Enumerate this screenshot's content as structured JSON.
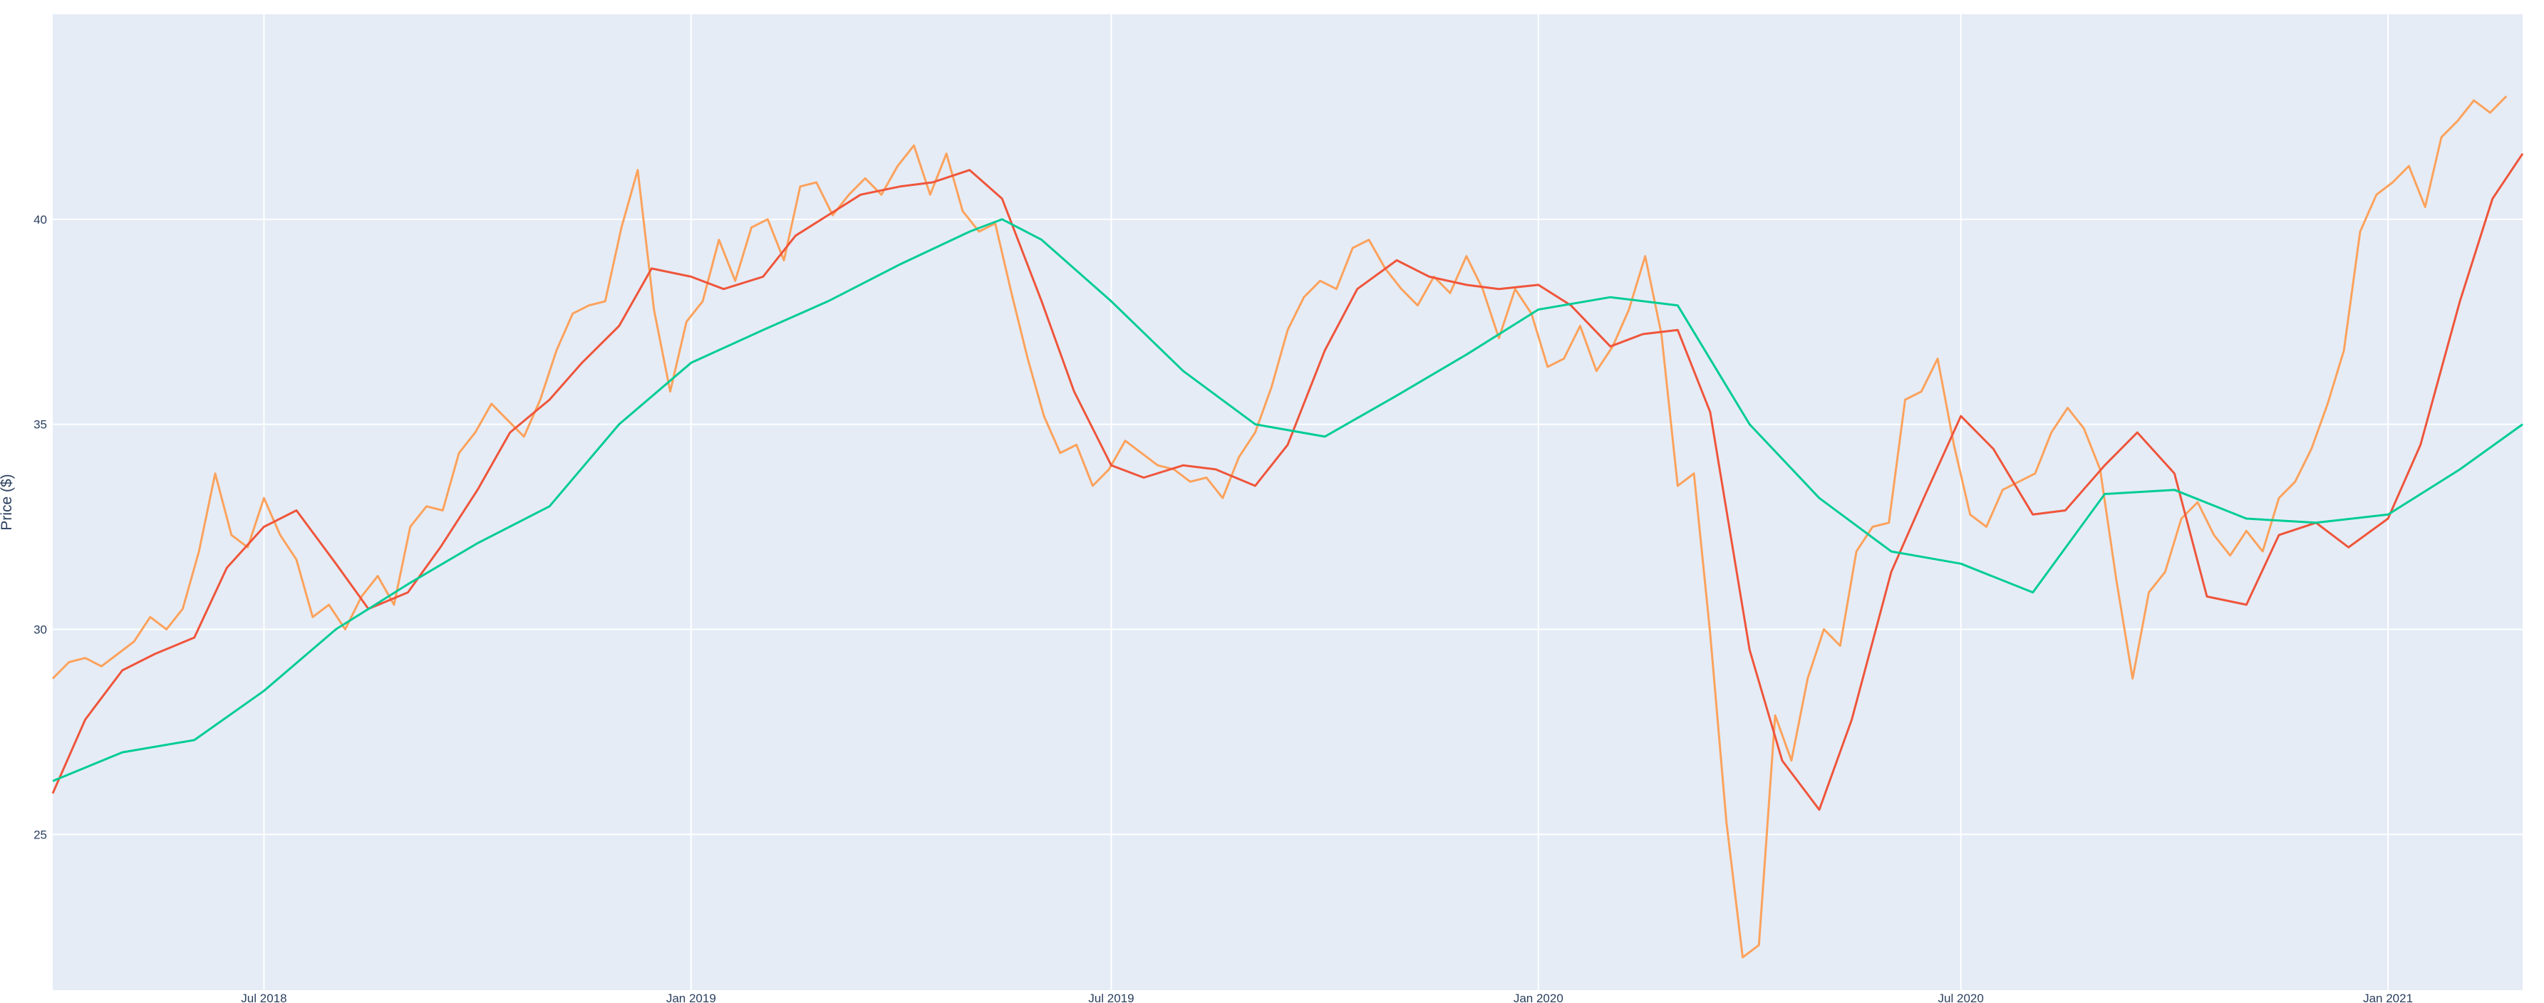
{
  "chart_data": {
    "type": "line",
    "title": "",
    "xlabel": "",
    "ylabel": "Price ($)",
    "xlim": [
      "2018-04-01",
      "2021-02-28"
    ],
    "ylim": [
      21.2,
      45.0
    ],
    "grid": true,
    "legend": "none",
    "colors": {
      "plot_bg": "#e5ecf6",
      "grid": "#ffffff",
      "tick_text": "#2a3f5f"
    },
    "x_ticks": [
      {
        "date": "2018-07-01",
        "label": "Jul 2018"
      },
      {
        "date": "2019-01-01",
        "label": "Jan 2019"
      },
      {
        "date": "2019-07-01",
        "label": "Jul 2019"
      },
      {
        "date": "2020-01-01",
        "label": "Jan 2020"
      },
      {
        "date": "2020-07-01",
        "label": "Jul 2020"
      },
      {
        "date": "2021-01-01",
        "label": "Jan 2021"
      }
    ],
    "y_ticks": [
      {
        "value": 25,
        "label": "25"
      },
      {
        "value": 30,
        "label": "30"
      },
      {
        "value": 35,
        "label": "35"
      },
      {
        "value": 40,
        "label": "40"
      }
    ],
    "series": [
      {
        "key": "price",
        "color": "#fca25c",
        "points": [
          [
            "2018-04-01",
            28.8
          ],
          [
            "2018-04-08",
            29.2
          ],
          [
            "2018-04-15",
            29.3
          ],
          [
            "2018-04-22",
            29.1
          ],
          [
            "2018-04-29",
            29.4
          ],
          [
            "2018-05-06",
            29.7
          ],
          [
            "2018-05-13",
            30.3
          ],
          [
            "2018-05-20",
            30.0
          ],
          [
            "2018-05-27",
            30.5
          ],
          [
            "2018-06-03",
            31.9
          ],
          [
            "2018-06-10",
            33.8
          ],
          [
            "2018-06-17",
            32.3
          ],
          [
            "2018-06-24",
            32.0
          ],
          [
            "2018-07-01",
            33.2
          ],
          [
            "2018-07-08",
            32.3
          ],
          [
            "2018-07-15",
            31.7
          ],
          [
            "2018-07-22",
            30.3
          ],
          [
            "2018-07-29",
            30.6
          ],
          [
            "2018-08-05",
            30.0
          ],
          [
            "2018-08-12",
            30.8
          ],
          [
            "2018-08-19",
            31.3
          ],
          [
            "2018-08-26",
            30.6
          ],
          [
            "2018-09-02",
            32.5
          ],
          [
            "2018-09-09",
            33.0
          ],
          [
            "2018-09-16",
            32.9
          ],
          [
            "2018-09-23",
            34.3
          ],
          [
            "2018-09-30",
            34.8
          ],
          [
            "2018-10-07",
            35.5
          ],
          [
            "2018-10-14",
            35.1
          ],
          [
            "2018-10-21",
            34.7
          ],
          [
            "2018-10-28",
            35.6
          ],
          [
            "2018-11-04",
            36.8
          ],
          [
            "2018-11-11",
            37.7
          ],
          [
            "2018-11-18",
            37.9
          ],
          [
            "2018-11-25",
            38.0
          ],
          [
            "2018-12-02",
            39.8
          ],
          [
            "2018-12-09",
            41.2
          ],
          [
            "2018-12-16",
            37.8
          ],
          [
            "2018-12-23",
            35.8
          ],
          [
            "2018-12-30",
            37.5
          ],
          [
            "2019-01-06",
            38.0
          ],
          [
            "2019-01-13",
            39.5
          ],
          [
            "2019-01-20",
            38.5
          ],
          [
            "2019-01-27",
            39.8
          ],
          [
            "2019-02-03",
            40.0
          ],
          [
            "2019-02-10",
            39.0
          ],
          [
            "2019-02-17",
            40.8
          ],
          [
            "2019-02-24",
            40.9
          ],
          [
            "2019-03-03",
            40.1
          ],
          [
            "2019-03-10",
            40.6
          ],
          [
            "2019-03-17",
            41.0
          ],
          [
            "2019-03-24",
            40.6
          ],
          [
            "2019-03-31",
            41.3
          ],
          [
            "2019-04-07",
            41.8
          ],
          [
            "2019-04-14",
            40.6
          ],
          [
            "2019-04-21",
            41.6
          ],
          [
            "2019-04-28",
            40.2
          ],
          [
            "2019-05-05",
            39.7
          ],
          [
            "2019-05-12",
            39.9
          ],
          [
            "2019-05-19",
            38.2
          ],
          [
            "2019-05-26",
            36.6
          ],
          [
            "2019-06-02",
            35.2
          ],
          [
            "2019-06-09",
            34.3
          ],
          [
            "2019-06-16",
            34.5
          ],
          [
            "2019-06-23",
            33.5
          ],
          [
            "2019-06-30",
            33.9
          ],
          [
            "2019-07-07",
            34.6
          ],
          [
            "2019-07-14",
            34.3
          ],
          [
            "2019-07-21",
            34.0
          ],
          [
            "2019-07-28",
            33.9
          ],
          [
            "2019-08-04",
            33.6
          ],
          [
            "2019-08-11",
            33.7
          ],
          [
            "2019-08-18",
            33.2
          ],
          [
            "2019-08-25",
            34.2
          ],
          [
            "2019-09-01",
            34.8
          ],
          [
            "2019-09-08",
            35.9
          ],
          [
            "2019-09-15",
            37.3
          ],
          [
            "2019-09-22",
            38.1
          ],
          [
            "2019-09-29",
            38.5
          ],
          [
            "2019-10-06",
            38.3
          ],
          [
            "2019-10-13",
            39.3
          ],
          [
            "2019-10-20",
            39.5
          ],
          [
            "2019-10-27",
            38.8
          ],
          [
            "2019-11-03",
            38.3
          ],
          [
            "2019-11-10",
            37.9
          ],
          [
            "2019-11-17",
            38.6
          ],
          [
            "2019-11-24",
            38.2
          ],
          [
            "2019-12-01",
            39.1
          ],
          [
            "2019-12-08",
            38.3
          ],
          [
            "2019-12-15",
            37.1
          ],
          [
            "2019-12-22",
            38.3
          ],
          [
            "2019-12-29",
            37.7
          ],
          [
            "2020-01-05",
            36.4
          ],
          [
            "2020-01-12",
            36.6
          ],
          [
            "2020-01-19",
            37.4
          ],
          [
            "2020-01-26",
            36.3
          ],
          [
            "2020-02-02",
            36.9
          ],
          [
            "2020-02-09",
            37.8
          ],
          [
            "2020-02-16",
            39.1
          ],
          [
            "2020-02-23",
            37.2
          ],
          [
            "2020-03-01",
            33.5
          ],
          [
            "2020-03-08",
            33.8
          ],
          [
            "2020-03-15",
            29.9
          ],
          [
            "2020-03-22",
            25.3
          ],
          [
            "2020-03-29",
            22.0
          ],
          [
            "2020-04-05",
            22.3
          ],
          [
            "2020-04-12",
            27.9
          ],
          [
            "2020-04-19",
            26.8
          ],
          [
            "2020-04-26",
            28.8
          ],
          [
            "2020-05-03",
            30.0
          ],
          [
            "2020-05-10",
            29.6
          ],
          [
            "2020-05-17",
            31.9
          ],
          [
            "2020-05-24",
            32.5
          ],
          [
            "2020-05-31",
            32.6
          ],
          [
            "2020-06-07",
            35.6
          ],
          [
            "2020-06-14",
            35.8
          ],
          [
            "2020-06-21",
            36.6
          ],
          [
            "2020-06-28",
            34.5
          ],
          [
            "2020-07-05",
            32.8
          ],
          [
            "2020-07-12",
            32.5
          ],
          [
            "2020-07-19",
            33.4
          ],
          [
            "2020-07-26",
            33.6
          ],
          [
            "2020-08-02",
            33.8
          ],
          [
            "2020-08-09",
            34.8
          ],
          [
            "2020-08-16",
            35.4
          ],
          [
            "2020-08-23",
            34.9
          ],
          [
            "2020-08-30",
            33.9
          ],
          [
            "2020-09-06",
            31.2
          ],
          [
            "2020-09-13",
            28.8
          ],
          [
            "2020-09-20",
            30.9
          ],
          [
            "2020-09-27",
            31.4
          ],
          [
            "2020-10-04",
            32.7
          ],
          [
            "2020-10-11",
            33.1
          ],
          [
            "2020-10-18",
            32.3
          ],
          [
            "2020-10-25",
            31.8
          ],
          [
            "2020-11-01",
            32.4
          ],
          [
            "2020-11-08",
            31.9
          ],
          [
            "2020-11-15",
            33.2
          ],
          [
            "2020-11-22",
            33.6
          ],
          [
            "2020-11-29",
            34.4
          ],
          [
            "2020-12-06",
            35.5
          ],
          [
            "2020-12-13",
            36.8
          ],
          [
            "2020-12-20",
            39.7
          ],
          [
            "2020-12-27",
            40.6
          ],
          [
            "2021-01-03",
            40.9
          ],
          [
            "2021-01-10",
            41.3
          ],
          [
            "2021-01-17",
            40.3
          ],
          [
            "2021-01-24",
            42.0
          ],
          [
            "2021-01-31",
            42.4
          ],
          [
            "2021-02-07",
            42.9
          ],
          [
            "2021-02-14",
            42.6
          ],
          [
            "2021-02-21",
            43.0
          ]
        ]
      },
      {
        "key": "ma-short",
        "color": "#ef553b",
        "points": [
          [
            "2018-04-01",
            26.0
          ],
          [
            "2018-04-15",
            27.8
          ],
          [
            "2018-05-01",
            29.0
          ],
          [
            "2018-05-15",
            29.4
          ],
          [
            "2018-06-01",
            29.8
          ],
          [
            "2018-06-15",
            31.5
          ],
          [
            "2018-07-01",
            32.5
          ],
          [
            "2018-07-15",
            32.9
          ],
          [
            "2018-08-01",
            31.6
          ],
          [
            "2018-08-15",
            30.5
          ],
          [
            "2018-09-01",
            30.9
          ],
          [
            "2018-09-15",
            32.0
          ],
          [
            "2018-10-01",
            33.4
          ],
          [
            "2018-10-15",
            34.8
          ],
          [
            "2018-11-01",
            35.6
          ],
          [
            "2018-11-15",
            36.5
          ],
          [
            "2018-12-01",
            37.4
          ],
          [
            "2018-12-15",
            38.8
          ],
          [
            "2019-01-01",
            38.6
          ],
          [
            "2019-01-15",
            38.3
          ],
          [
            "2019-02-01",
            38.6
          ],
          [
            "2019-02-15",
            39.6
          ],
          [
            "2019-03-01",
            40.1
          ],
          [
            "2019-03-15",
            40.6
          ],
          [
            "2019-04-01",
            40.8
          ],
          [
            "2019-04-15",
            40.9
          ],
          [
            "2019-05-01",
            41.2
          ],
          [
            "2019-05-15",
            40.5
          ],
          [
            "2019-06-01",
            38.0
          ],
          [
            "2019-06-15",
            35.8
          ],
          [
            "2019-07-01",
            34.0
          ],
          [
            "2019-07-15",
            33.7
          ],
          [
            "2019-08-01",
            34.0
          ],
          [
            "2019-08-15",
            33.9
          ],
          [
            "2019-09-01",
            33.5
          ],
          [
            "2019-09-15",
            34.5
          ],
          [
            "2019-10-01",
            36.8
          ],
          [
            "2019-10-15",
            38.3
          ],
          [
            "2019-11-01",
            39.0
          ],
          [
            "2019-11-15",
            38.6
          ],
          [
            "2019-12-01",
            38.4
          ],
          [
            "2019-12-15",
            38.3
          ],
          [
            "2020-01-01",
            38.4
          ],
          [
            "2020-01-15",
            37.9
          ],
          [
            "2020-02-01",
            36.9
          ],
          [
            "2020-02-15",
            37.2
          ],
          [
            "2020-03-01",
            37.3
          ],
          [
            "2020-03-15",
            35.3
          ],
          [
            "2020-04-01",
            29.5
          ],
          [
            "2020-04-15",
            26.8
          ],
          [
            "2020-05-01",
            25.6
          ],
          [
            "2020-05-15",
            27.8
          ],
          [
            "2020-06-01",
            31.4
          ],
          [
            "2020-06-15",
            33.2
          ],
          [
            "2020-07-01",
            35.2
          ],
          [
            "2020-07-15",
            34.4
          ],
          [
            "2020-08-01",
            32.8
          ],
          [
            "2020-08-15",
            32.9
          ],
          [
            "2020-09-01",
            34.0
          ],
          [
            "2020-09-15",
            34.8
          ],
          [
            "2020-10-01",
            33.8
          ],
          [
            "2020-10-15",
            30.8
          ],
          [
            "2020-11-01",
            30.6
          ],
          [
            "2020-11-15",
            32.3
          ],
          [
            "2020-12-01",
            32.6
          ],
          [
            "2020-12-15",
            32.0
          ],
          [
            "2021-01-01",
            32.7
          ],
          [
            "2021-01-15",
            34.5
          ],
          [
            "2021-02-01",
            38.0
          ],
          [
            "2021-02-15",
            40.5
          ],
          [
            "2021-02-28",
            41.6
          ]
        ]
      },
      {
        "key": "ma-long",
        "color": "#00cc96",
        "points": [
          [
            "2018-04-01",
            26.3
          ],
          [
            "2018-05-01",
            27.0
          ],
          [
            "2018-06-01",
            27.3
          ],
          [
            "2018-07-01",
            28.5
          ],
          [
            "2018-08-01",
            30.0
          ],
          [
            "2018-09-01",
            31.1
          ],
          [
            "2018-10-01",
            32.1
          ],
          [
            "2018-11-01",
            33.0
          ],
          [
            "2018-12-01",
            35.0
          ],
          [
            "2019-01-01",
            36.5
          ],
          [
            "2019-02-01",
            37.3
          ],
          [
            "2019-03-01",
            38.0
          ],
          [
            "2019-04-01",
            38.9
          ],
          [
            "2019-05-01",
            39.7
          ],
          [
            "2019-05-15",
            40.0
          ],
          [
            "2019-06-01",
            39.5
          ],
          [
            "2019-07-01",
            38.0
          ],
          [
            "2019-08-01",
            36.3
          ],
          [
            "2019-09-01",
            35.0
          ],
          [
            "2019-10-01",
            34.7
          ],
          [
            "2019-11-01",
            35.7
          ],
          [
            "2019-12-01",
            36.7
          ],
          [
            "2020-01-01",
            37.8
          ],
          [
            "2020-02-01",
            38.1
          ],
          [
            "2020-03-01",
            37.9
          ],
          [
            "2020-04-01",
            35.0
          ],
          [
            "2020-05-01",
            33.2
          ],
          [
            "2020-06-01",
            31.9
          ],
          [
            "2020-07-01",
            31.6
          ],
          [
            "2020-08-01",
            30.9
          ],
          [
            "2020-09-01",
            33.3
          ],
          [
            "2020-10-01",
            33.4
          ],
          [
            "2020-11-01",
            32.7
          ],
          [
            "2020-12-01",
            32.6
          ],
          [
            "2021-01-01",
            32.8
          ],
          [
            "2021-02-01",
            33.9
          ],
          [
            "2021-02-28",
            35.0
          ]
        ]
      }
    ]
  }
}
